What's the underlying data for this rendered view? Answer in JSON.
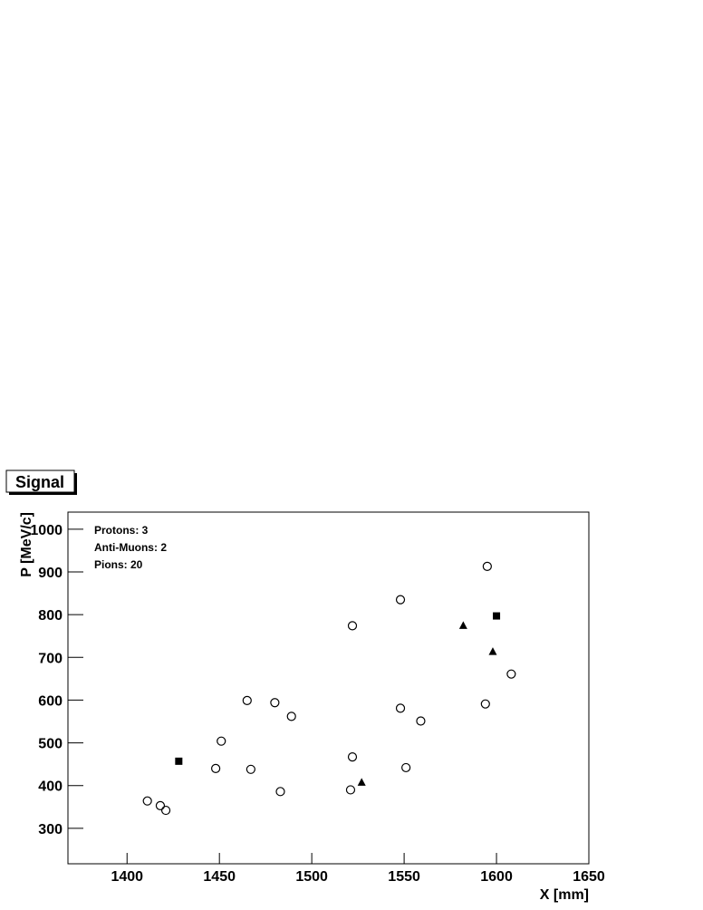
{
  "chart_data": {
    "type": "scatter",
    "title": "Signal",
    "x_label": "X [mm]",
    "y_label": "P [MeV/c]",
    "xlim": [
      1368,
      1650
    ],
    "ylim": [
      217,
      1040
    ],
    "xticks": [
      1400,
      1450,
      1500,
      1550,
      1600,
      1650
    ],
    "yticks": [
      300,
      400,
      500,
      600,
      700,
      800,
      900,
      1000
    ],
    "series": [
      {
        "name": "Protons: 3",
        "color": "#000000",
        "marker": "triangle",
        "x": [
          1527,
          1582,
          1598
        ],
        "values": [
          407,
          774,
          713
        ]
      },
      {
        "name": "Anti-Muons: 2",
        "color": "#000000",
        "marker": "square",
        "x": [
          1428,
          1600
        ],
        "values": [
          457,
          797
        ]
      },
      {
        "name": "Pions: 20",
        "color": "#000000",
        "marker": "open-circle",
        "x": [
          1411,
          1418,
          1421,
          1448,
          1451,
          1465,
          1467,
          1480,
          1483,
          1489,
          1522,
          1522,
          1521,
          1548,
          1548,
          1551,
          1559,
          1595,
          1594,
          1608
        ],
        "values": [
          364,
          353,
          342,
          440,
          504,
          599,
          438,
          594,
          386,
          562,
          774,
          467,
          390,
          835,
          581,
          442,
          551,
          913,
          591,
          661
        ]
      }
    ]
  }
}
